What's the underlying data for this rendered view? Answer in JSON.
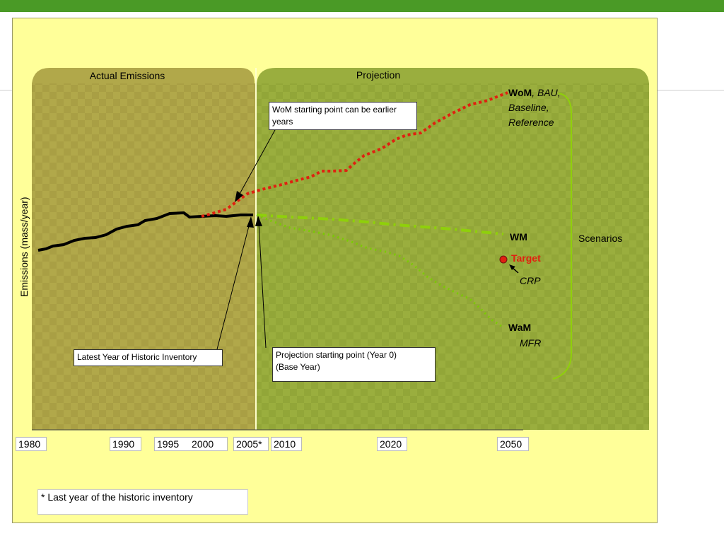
{
  "colors": {
    "accent_bar": "#4a9a26",
    "slide_bg": "#ffff99",
    "actual_panel": "#b1a84a",
    "projection_panel": "#9aae3e",
    "historic_line": "#000000",
    "wom_line": "#e02010",
    "wm_line": "#8fd00a",
    "wam_line": "#7acc00",
    "target_dot": "#e02010"
  },
  "headers": {
    "actual": "Actual Emissions",
    "projection": "Projection"
  },
  "axis": {
    "y_label": "Emissions (mass/year)"
  },
  "callouts": {
    "wom_start": "WoM starting point can be earlier years",
    "latest_year": "Latest Year of Historic Inventory",
    "projection_start_line1": "Projection starting point (Year 0)",
    "projection_start_line2": "(Base Year)"
  },
  "scenario_labels": {
    "wom_bold": "WoM",
    "wom_italic_1": ", BAU,",
    "wom_italic_2": "Baseline,",
    "wom_italic_3": "Reference",
    "wm": "WM",
    "target": "Target",
    "crp": "CRP",
    "wam": "WaM",
    "mfr": "MFR",
    "scenarios": "Scenarios"
  },
  "years": {
    "y1980": "1980",
    "y1990": "1990",
    "y1995": "1995",
    "y2000": "2000",
    "y2005": "2005*",
    "y2010": "2010",
    "y2020": "2020",
    "y2050": "2050"
  },
  "footnote": "* Last year of the historic inventory"
}
